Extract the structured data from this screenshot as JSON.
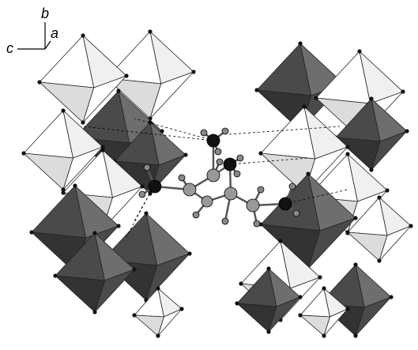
{
  "axis_labels": {
    "b": "b",
    "a": "a",
    "c": "c"
  }
}
